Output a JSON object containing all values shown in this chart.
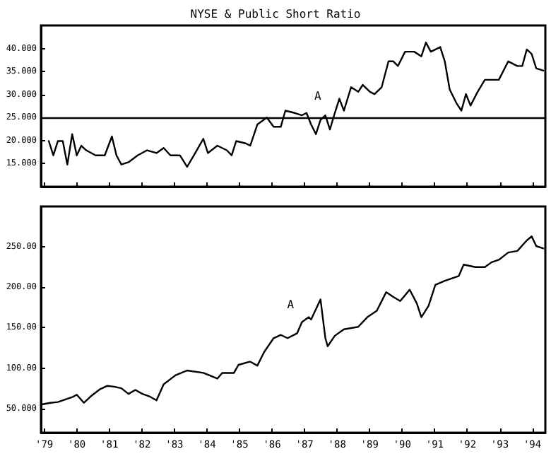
{
  "chart_data": [
    {
      "type": "line",
      "title": "NYSE & Public Short Ratio",
      "tick_labels": "y",
      "grid": false,
      "line_style": "solid",
      "xlim": [
        1978.9,
        1994.4
      ],
      "xticks": [
        {
          "value": 1979,
          "label": null
        },
        {
          "value": 1980,
          "label": null
        },
        {
          "value": 1981,
          "label": null
        },
        {
          "value": 1982,
          "label": null
        },
        {
          "value": 1983,
          "label": null
        },
        {
          "value": 1984,
          "label": null
        },
        {
          "value": 1985,
          "label": null
        },
        {
          "value": 1986,
          "label": null
        },
        {
          "value": 1987,
          "label": null
        },
        {
          "value": 1988,
          "label": null
        },
        {
          "value": 1989,
          "label": null
        },
        {
          "value": 1990,
          "label": null
        },
        {
          "value": 1991,
          "label": null
        },
        {
          "value": 1992,
          "label": null
        },
        {
          "value": 1993,
          "label": null
        },
        {
          "value": 1994,
          "label": null
        }
      ],
      "ylim": [
        10,
        45
      ],
      "yticks": [
        {
          "value": 15,
          "label": "15.000"
        },
        {
          "value": 20,
          "label": "20.000"
        },
        {
          "value": 25,
          "label": "25.000"
        },
        {
          "value": 30,
          "label": "30.000"
        },
        {
          "value": 35,
          "label": "35.000"
        },
        {
          "value": 40,
          "label": "40.000"
        }
      ],
      "ref_lines": [
        {
          "axis": "y",
          "value": 25,
          "label": null,
          "color": "#000000"
        }
      ],
      "annotations": [
        {
          "text": "A",
          "x": 1987.06,
          "y": 26.0
        }
      ],
      "series": [
        {
          "color": "#000000",
          "x": [
            1979.14,
            1979.28,
            1979.42,
            1979.57,
            1979.71,
            1979.86,
            1980.0,
            1980.14,
            1980.29,
            1980.58,
            1980.86,
            1981.08,
            1981.22,
            1981.37,
            1981.59,
            1981.87,
            1982.16,
            1982.45,
            1982.67,
            1982.88,
            1983.17,
            1983.39,
            1983.6,
            1983.89,
            1984.03,
            1984.32,
            1984.61,
            1984.76,
            1984.9,
            1985.19,
            1985.33,
            1985.55,
            1985.84,
            1986.05,
            1986.27,
            1986.41,
            1986.7,
            1986.92,
            1987.06,
            1987.2,
            1987.35,
            1987.49,
            1987.64,
            1987.78,
            1987.93,
            1988.07,
            1988.21,
            1988.43,
            1988.65,
            1988.79,
            1989.01,
            1989.15,
            1989.37,
            1989.58,
            1989.73,
            1989.87,
            1990.09,
            1990.37,
            1990.59,
            1990.73,
            1990.88,
            1991.17,
            1991.31,
            1991.46,
            1991.67,
            1991.82,
            1991.96,
            1992.1,
            1992.32,
            1992.54,
            1992.75,
            1992.97,
            1993.26,
            1993.54,
            1993.69,
            1993.83,
            1993.98,
            1994.12,
            1994.34
          ],
          "values": [
            19.9,
            16.8,
            19.9,
            19.9,
            14.8,
            21.4,
            16.8,
            18.9,
            17.9,
            16.8,
            16.8,
            20.9,
            16.8,
            14.8,
            15.3,
            16.8,
            17.9,
            17.3,
            18.4,
            16.8,
            16.8,
            14.3,
            16.8,
            20.4,
            17.3,
            18.9,
            17.9,
            16.8,
            19.9,
            19.4,
            18.9,
            23.5,
            25.0,
            23.0,
            23.0,
            26.5,
            26.0,
            25.5,
            26.0,
            23.5,
            21.4,
            24.5,
            25.5,
            22.4,
            26.0,
            29.1,
            26.5,
            31.6,
            30.6,
            32.1,
            30.6,
            30.1,
            31.6,
            37.2,
            37.2,
            36.2,
            39.3,
            39.3,
            38.3,
            41.3,
            39.3,
            40.3,
            37.2,
            31.1,
            28.1,
            26.5,
            30.1,
            27.6,
            30.6,
            33.2,
            33.2,
            33.2,
            37.2,
            36.2,
            36.2,
            39.8,
            38.8,
            35.7,
            35.2
          ]
        }
      ]
    },
    {
      "type": "line",
      "grid": false,
      "line_style": "solid",
      "xlim": [
        1978.9,
        1994.4
      ],
      "xticks": [
        {
          "value": 1979,
          "label": "'79"
        },
        {
          "value": 1980,
          "label": "'80"
        },
        {
          "value": 1981,
          "label": "'81"
        },
        {
          "value": 1982,
          "label": "'82"
        },
        {
          "value": 1983,
          "label": "'83"
        },
        {
          "value": 1984,
          "label": "'84"
        },
        {
          "value": 1985,
          "label": "'85"
        },
        {
          "value": 1986,
          "label": "'86"
        },
        {
          "value": 1987,
          "label": "'87"
        },
        {
          "value": 1988,
          "label": "'88"
        },
        {
          "value": 1989,
          "label": "'89"
        },
        {
          "value": 1990,
          "label": "'90"
        },
        {
          "value": 1991,
          "label": "'91"
        },
        {
          "value": 1992,
          "label": "'92"
        },
        {
          "value": 1993,
          "label": "'93"
        },
        {
          "value": 1994,
          "label": "'94"
        }
      ],
      "ylim": [
        20,
        300
      ],
      "yticks": [
        {
          "value": 50,
          "label": "50.000"
        },
        {
          "value": 100,
          "label": "100.00"
        },
        {
          "value": 150,
          "label": "150.00"
        },
        {
          "value": 200,
          "label": "200.00"
        },
        {
          "value": 250,
          "label": "250.00"
        }
      ],
      "annotations": [
        {
          "text": "A",
          "x": 1986.92,
          "y": 157
        }
      ],
      "series": [
        {
          "color": "#000000",
          "x": [
            1978.93,
            1979.18,
            1979.42,
            1979.64,
            1979.86,
            1980.0,
            1980.22,
            1980.43,
            1980.72,
            1980.94,
            1981.15,
            1981.37,
            1981.59,
            1981.8,
            1982.02,
            1982.23,
            1982.45,
            1982.67,
            1983.03,
            1983.39,
            1983.89,
            1984.32,
            1984.47,
            1984.83,
            1984.97,
            1985.33,
            1985.55,
            1985.76,
            1986.05,
            1986.27,
            1986.48,
            1986.77,
            1986.92,
            1987.13,
            1987.2,
            1987.49,
            1987.64,
            1987.71,
            1987.93,
            1988.21,
            1988.65,
            1988.93,
            1989.22,
            1989.51,
            1989.73,
            1989.94,
            1990.23,
            1990.45,
            1990.59,
            1990.81,
            1991.02,
            1991.31,
            1991.74,
            1991.89,
            1992.25,
            1992.54,
            1992.75,
            1992.97,
            1993.26,
            1993.54,
            1993.83,
            1993.98,
            1994.12,
            1994.34
          ],
          "values": [
            55,
            57,
            58,
            61,
            64,
            67,
            57,
            65,
            74,
            78,
            77,
            75,
            68,
            73,
            68,
            65,
            60,
            80,
            91,
            97,
            94,
            87,
            94,
            94,
            104,
            108,
            103,
            120,
            137,
            141,
            137,
            143,
            157,
            163,
            160,
            185,
            137,
            127,
            140,
            148,
            151,
            163,
            171,
            194,
            188,
            183,
            197,
            180,
            163,
            177,
            203,
            208,
            214,
            228,
            225,
            225,
            231,
            234,
            243,
            245,
            258,
            263,
            251,
            248
          ]
        }
      ]
    }
  ]
}
